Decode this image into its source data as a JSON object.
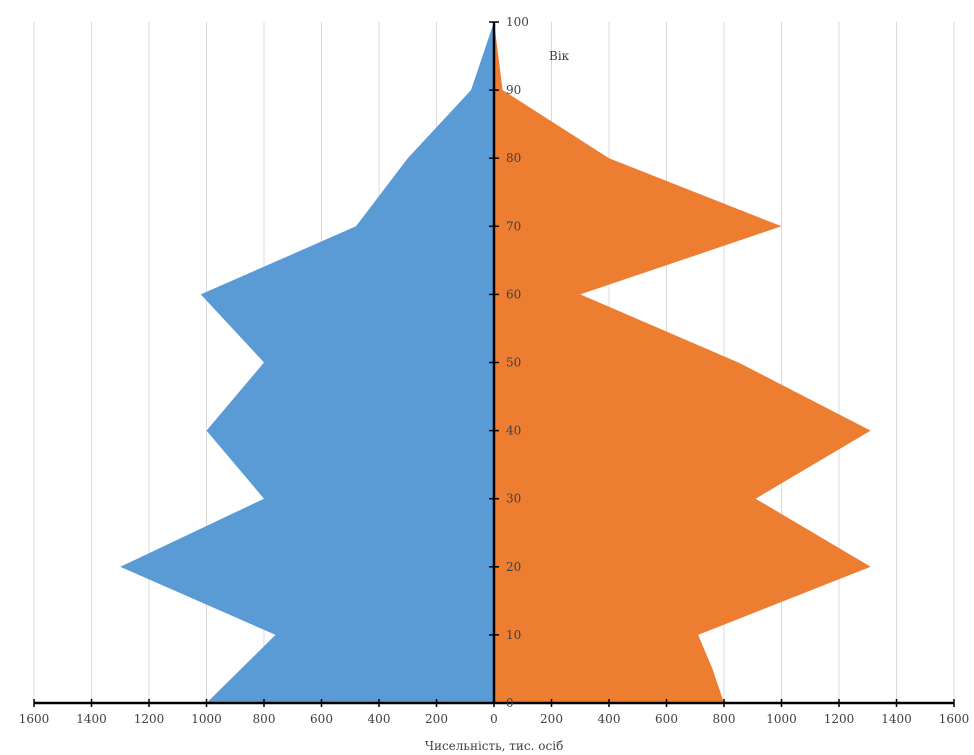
{
  "chart_data": {
    "type": "area",
    "orientation": "population-pyramid",
    "title": "",
    "xlabel": "Чисельність, тис. осіб",
    "ylabel": "Вік",
    "x_ticks": [
      "1600",
      "1400",
      "1200",
      "1000",
      "800",
      "600",
      "400",
      "200",
      "0",
      "200",
      "400",
      "600",
      "800",
      "1000",
      "1200",
      "1400",
      "1600"
    ],
    "y_ticks": [
      "0",
      "10",
      "20",
      "30",
      "40",
      "50",
      "60",
      "70",
      "80",
      "90",
      "100"
    ],
    "xlim": [
      -1600,
      1600
    ],
    "ylim": [
      0,
      100
    ],
    "grid": "vertical",
    "ages": [
      0,
      5,
      10,
      20,
      30,
      40,
      50,
      60,
      70,
      80,
      90,
      100
    ],
    "series": [
      {
        "side": "left",
        "color": "#5b9bd5",
        "values": [
          1000,
          880,
          760,
          1300,
          800,
          1000,
          800,
          1020,
          480,
          300,
          80,
          0
        ]
      },
      {
        "side": "right",
        "color": "#ed7d31",
        "values": [
          800,
          760,
          710,
          1310,
          910,
          1310,
          850,
          300,
          1000,
          400,
          30,
          0
        ]
      }
    ]
  }
}
